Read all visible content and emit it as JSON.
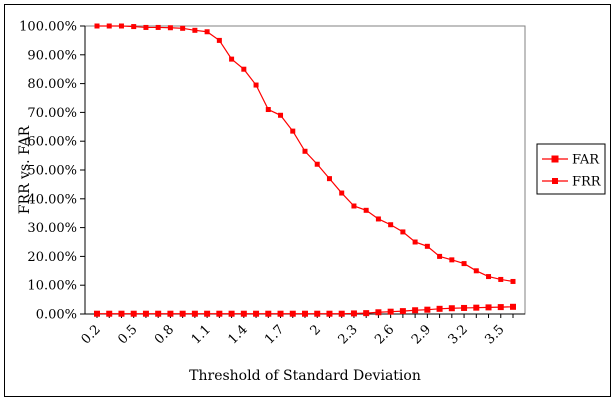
{
  "chart_data": {
    "type": "line",
    "title": "",
    "xlabel": "Threshold of Standard Deviation",
    "ylabel": "FRR vs. FAR",
    "x": [
      0.2,
      0.3,
      0.4,
      0.5,
      0.6,
      0.7,
      0.8,
      0.9,
      1.0,
      1.1,
      1.2,
      1.3,
      1.4,
      1.5,
      1.6,
      1.7,
      1.8,
      1.9,
      2.0,
      2.1,
      2.2,
      2.3,
      2.4,
      2.5,
      2.6,
      2.7,
      2.8,
      2.9,
      3.0,
      3.1,
      3.2,
      3.3,
      3.4,
      3.5,
      3.6
    ],
    "x_tick_labels": [
      "0.2",
      "0.5",
      "0.8",
      "1.1",
      "1.4",
      "1.7",
      "2",
      "2.3",
      "2.6",
      "2.9",
      "3.2",
      "3.5"
    ],
    "x_tick_values": [
      0.2,
      0.5,
      0.8,
      1.1,
      1.4,
      1.7,
      2.0,
      2.3,
      2.6,
      2.9,
      3.2,
      3.5
    ],
    "y_ticks": [
      0,
      10,
      20,
      30,
      40,
      50,
      60,
      70,
      80,
      90,
      100
    ],
    "y_tick_labels": [
      "0.00%",
      "10.00%",
      "20.00%",
      "30.00%",
      "40.00%",
      "50.00%",
      "60.00%",
      "70.00%",
      "80.00%",
      "90.00%",
      "100.00%"
    ],
    "ylim": [
      0,
      100
    ],
    "grid": false,
    "legend_position": "right",
    "series": [
      {
        "name": "FAR",
        "color": "#ff0000",
        "marker": "square",
        "values": [
          0.1,
          0.1,
          0.1,
          0.1,
          0.1,
          0.1,
          0.1,
          0.1,
          0.1,
          0.1,
          0.1,
          0.1,
          0.1,
          0.1,
          0.1,
          0.1,
          0.1,
          0.1,
          0.1,
          0.1,
          0.1,
          0.2,
          0.3,
          0.6,
          0.8,
          1.0,
          1.3,
          1.5,
          1.8,
          2.0,
          2.1,
          2.2,
          2.3,
          2.4,
          2.5
        ]
      },
      {
        "name": "FRR",
        "color": "#ff0000",
        "marker": "square-small",
        "values": [
          100.0,
          100.0,
          100.0,
          99.8,
          99.5,
          99.5,
          99.4,
          99.2,
          98.5,
          98.0,
          95.0,
          88.5,
          85.0,
          79.5,
          71.0,
          69.0,
          63.5,
          56.5,
          52.0,
          47.0,
          42.0,
          37.5,
          36.0,
          33.0,
          31.0,
          28.5,
          25.0,
          23.5,
          20.0,
          18.8,
          17.5,
          15.0,
          13.0,
          12.0,
          11.3
        ]
      }
    ]
  }
}
